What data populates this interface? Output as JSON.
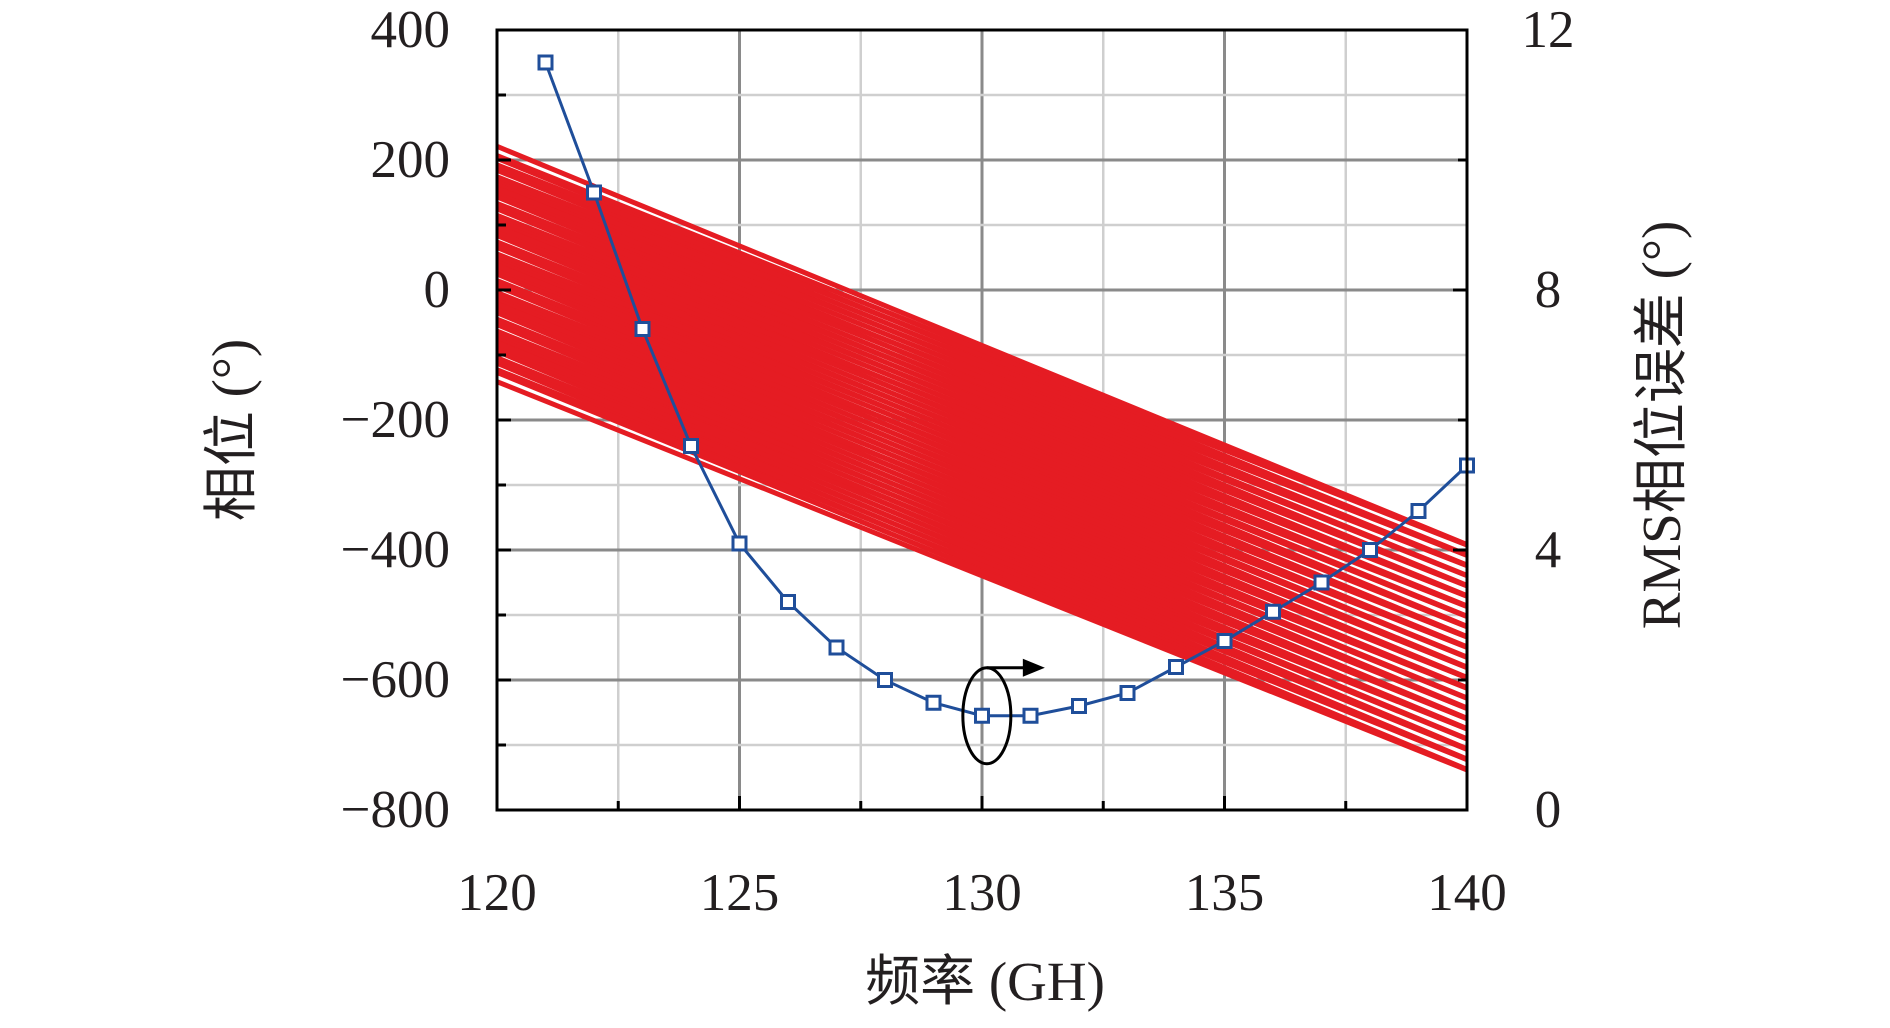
{
  "chart_data": {
    "type": "line",
    "xlabel": "频率 (GH)",
    "ylabel": "相位 (°)",
    "y2label": "RMS相位误差 (°)",
    "xlim": [
      120,
      140
    ],
    "ylim": [
      -800,
      400
    ],
    "y2lim": [
      0,
      12
    ],
    "grid": true,
    "x_ticks": [
      "120",
      "125",
      "130",
      "135",
      "140"
    ],
    "y_ticks": [
      "400",
      "200",
      "0",
      "−200",
      "−400",
      "−600",
      "−800"
    ],
    "y2_ticks": [
      "12",
      "8",
      "4",
      "0"
    ],
    "phase_series": {
      "color": "#e51c23",
      "x": [
        120,
        140
      ],
      "count": 64,
      "start_range": [
        -130,
        210
      ],
      "end_range": [
        -745,
        -385
      ]
    },
    "rms_series": {
      "color": "#1f4e9a",
      "marker": "square",
      "x": [
        121,
        122,
        123,
        124,
        125,
        126,
        127,
        128,
        129,
        130,
        131,
        132,
        133,
        134,
        135,
        136,
        137,
        138,
        139,
        140
      ],
      "y": [
        11.5,
        9.5,
        7.4,
        5.6,
        4.1,
        3.2,
        2.5,
        2.0,
        1.65,
        1.45,
        1.45,
        1.6,
        1.8,
        2.2,
        2.6,
        3.05,
        3.5,
        4.0,
        4.6,
        5.3
      ]
    },
    "annotation": "ellipse with arrow pointing to right axis"
  }
}
